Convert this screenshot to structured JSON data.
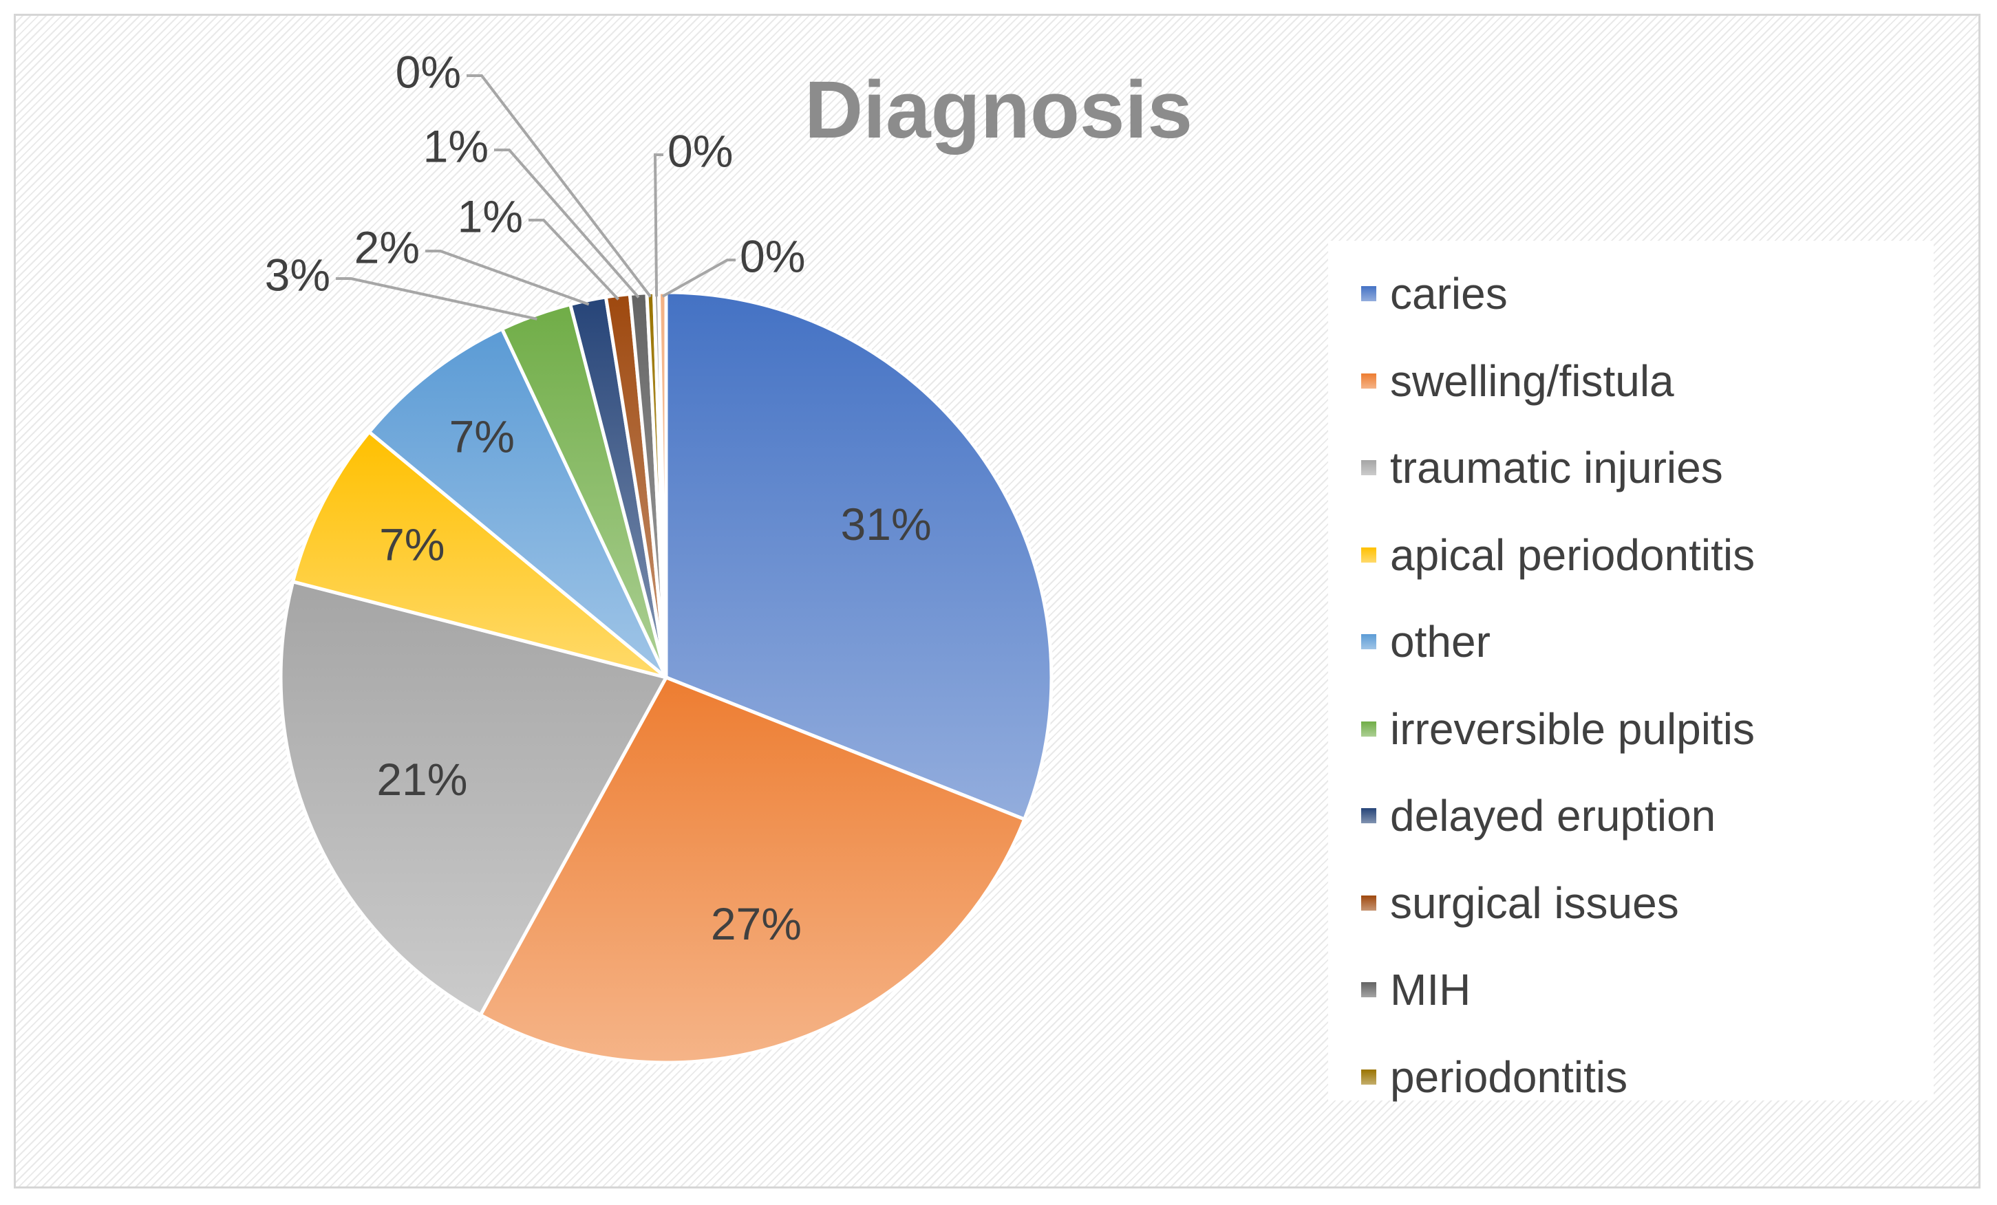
{
  "chart_data": {
    "type": "pie",
    "title": "Diagnosis",
    "legend_position": "right",
    "slices": [
      {
        "label": "caries",
        "value": 31,
        "display": "31%",
        "color": "#4472C4"
      },
      {
        "label": "swelling/fistula",
        "value": 27,
        "display": "27%",
        "color": "#ED7D31"
      },
      {
        "label": "traumatic injuries",
        "value": 21,
        "display": "21%",
        "color": "#A5A5A5"
      },
      {
        "label": "apical periodontitis",
        "value": 7,
        "display": "7%",
        "color": "#FFC000"
      },
      {
        "label": "other",
        "value": 7,
        "display": "7%",
        "color": "#5B9BD5"
      },
      {
        "label": "irreversible pulpitis",
        "value": 3,
        "display": "3%",
        "color": "#70AD47"
      },
      {
        "label": "delayed eruption",
        "value": 1.5,
        "display": "2%",
        "color": "#264478"
      },
      {
        "label": "surgical issues",
        "value": 1,
        "display": "1%",
        "color": "#9E480E"
      },
      {
        "label": "MIH",
        "value": 0.7,
        "display": "1%",
        "color": "#636363"
      },
      {
        "label": "periodontitis",
        "value": 0.3,
        "display": "0%",
        "color": "#997300"
      },
      {
        "label": "",
        "value": 0.2,
        "display": "0%",
        "color": "#A0A0A0"
      },
      {
        "label": "",
        "value": 0.3,
        "display": "0%",
        "color": "#F4B183"
      }
    ]
  }
}
